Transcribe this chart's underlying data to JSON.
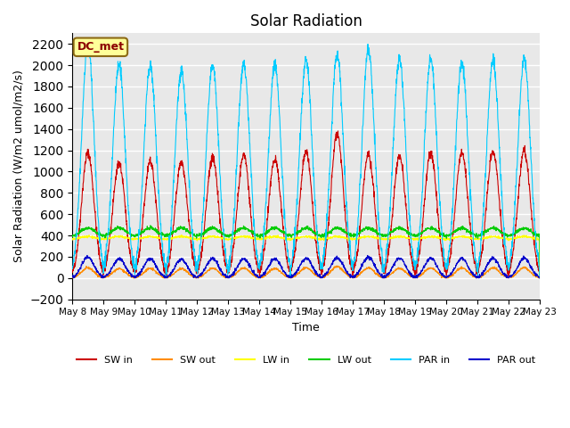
{
  "title": "Solar Radiation",
  "ylabel": "Solar Radiation (W/m2 umol/m2/s)",
  "xlabel": "Time",
  "ylim": [
    -200,
    2300
  ],
  "yticks": [
    -200,
    0,
    200,
    400,
    600,
    800,
    1000,
    1200,
    1400,
    1600,
    1800,
    2000,
    2200
  ],
  "annotation_text": "DC_met",
  "annotation_color": "#8B0000",
  "annotation_bg": "#FFFF99",
  "annotation_border": "#8B6914",
  "series_order": [
    "SW_in",
    "SW_out",
    "LW_in",
    "LW_out",
    "PAR_in",
    "PAR_out"
  ],
  "series": {
    "SW_in": {
      "color": "#CC0000",
      "label": "SW in"
    },
    "SW_out": {
      "color": "#FF8C00",
      "label": "SW out"
    },
    "LW_in": {
      "color": "#FFFF00",
      "label": "LW in"
    },
    "LW_out": {
      "color": "#00CC00",
      "label": "LW out"
    },
    "PAR_in": {
      "color": "#00CCFF",
      "label": "PAR in"
    },
    "PAR_out": {
      "color": "#0000CC",
      "label": "PAR out"
    }
  },
  "x_tick_labels": [
    "May 8",
    "May 9",
    "May 10",
    "May 11",
    "May 12",
    "May 13",
    "May 14",
    "May 15",
    "May 16",
    "May 17",
    "May 18",
    "May 19",
    "May 20",
    "May 21",
    "May 22",
    "May 23"
  ],
  "n_days": 15,
  "background_color": "#E8E8E8",
  "grid_color": "#FFFFFF",
  "fig_bg": "#FFFFFF"
}
